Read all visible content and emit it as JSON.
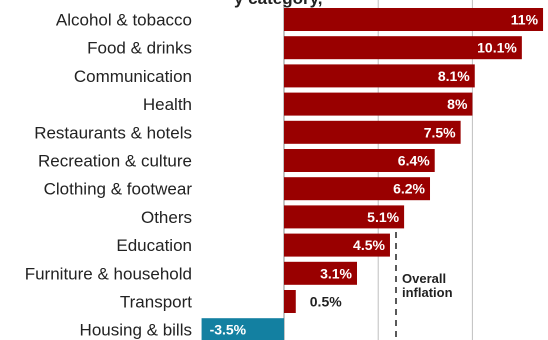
{
  "chart_data": {
    "type": "bar",
    "orientation": "horizontal",
    "categories": [
      "Alcohol & tobacco",
      "Food & drinks",
      "Communication",
      "Health",
      "Restaurants & hotels",
      "Recreation & culture",
      "Clothing & footwear",
      "Others",
      "Education",
      "Furniture & household",
      "Transport",
      "Housing & bills"
    ],
    "values": [
      11,
      10.1,
      8.1,
      8,
      7.5,
      6.4,
      6.2,
      5.1,
      4.5,
      3.1,
      0.5,
      -3.5
    ],
    "value_labels": [
      "11%",
      "10.1%",
      "8.1%",
      "8%",
      "7.5%",
      "6.4%",
      "6.2%",
      "5.1%",
      "4.5%",
      "3.1%",
      "0.5%",
      "-3.5%"
    ],
    "title_fragment": "y category,",
    "reference_line": {
      "label_line1": "Overall",
      "label_line2": "inflation",
      "style": "dashed"
    },
    "grid": true,
    "colors": {
      "positive": "#990000",
      "negative": "#1380a1",
      "text": "#222222",
      "grid": "#bfbfbf"
    }
  }
}
